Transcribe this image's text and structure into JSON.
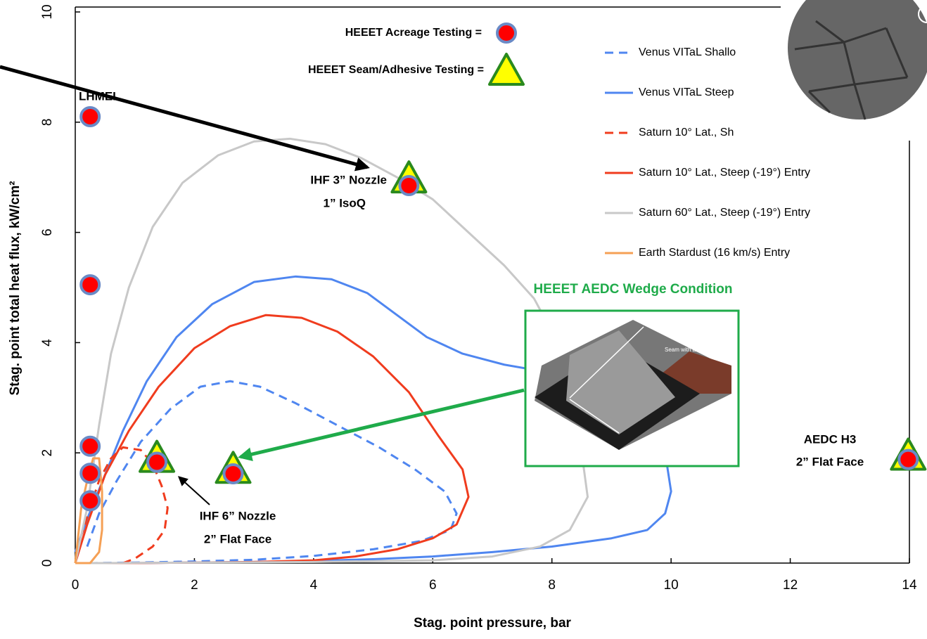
{
  "chart_data": {
    "type": "line",
    "x_label": "Stag. point pressure, bar",
    "y_label": "Stag. point total heat flux, kW/cm²",
    "xlim": [
      0,
      14
    ],
    "xticks": [
      0,
      2,
      4,
      6,
      8,
      10,
      12,
      14
    ],
    "ylim": [
      0,
      10
    ],
    "yticks": [
      0,
      2,
      4,
      6,
      8,
      10
    ],
    "series": [
      {
        "name": "Venus VITaL Shallo",
        "type": "line",
        "dash": true,
        "color": "#4f86f0",
        "x": [
          0.2,
          0.4,
          0.7,
          1.1,
          1.6,
          2.1,
          2.6,
          3.1,
          3.7,
          4.4,
          5.1,
          5.7,
          6.2,
          6.4,
          6.3,
          5.8,
          5,
          4,
          3,
          2,
          1,
          0.3
        ],
        "values": [
          0.3,
          0.9,
          1.5,
          2.2,
          2.8,
          3.2,
          3.3,
          3.2,
          2.9,
          2.5,
          2.1,
          1.7,
          1.3,
          0.9,
          0.6,
          0.4,
          0.25,
          0.13,
          0.06,
          0.03,
          0.01,
          0
        ]
      },
      {
        "name": "Venus VITaL Steep",
        "type": "line",
        "dash": false,
        "color": "#4f86f0",
        "x": [
          0,
          0.2,
          0.5,
          0.8,
          1.2,
          1.7,
          2.3,
          3,
          3.7,
          4.3,
          4.9,
          5.4,
          5.9,
          6.5,
          7.2,
          8,
          9,
          9.6,
          9.9,
          10,
          9.9,
          9.6,
          9,
          8,
          7,
          6,
          5,
          4,
          3,
          2,
          1,
          0
        ],
        "values": [
          0.2,
          0.8,
          1.6,
          2.4,
          3.3,
          4.1,
          4.7,
          5.1,
          5.2,
          5.15,
          4.9,
          4.5,
          4.1,
          3.8,
          3.6,
          3.45,
          3.2,
          2.7,
          2,
          1.3,
          0.9,
          0.6,
          0.45,
          0.3,
          0.2,
          0.12,
          0.07,
          0.04,
          0.02,
          0.01,
          0,
          0
        ]
      },
      {
        "name": "Saturn 10° Lat., Sh",
        "type": "line",
        "dash": true,
        "color": "#f03c1e",
        "x": [
          0.8,
          1,
          1.3,
          1.5,
          1.55,
          1.45,
          1.3,
          1.1,
          0.8,
          0.6,
          0.4,
          0.25,
          0.1
        ],
        "values": [
          0,
          0.08,
          0.3,
          0.6,
          1,
          1.4,
          1.8,
          2.05,
          2.1,
          1.9,
          1.5,
          1,
          0.5
        ]
      },
      {
        "name": "Saturn 10° Lat., Steep (-19°) Entry",
        "type": "line",
        "dash": false,
        "color": "#f03c1e",
        "x": [
          0,
          0.2,
          0.5,
          0.9,
          1.4,
          2,
          2.6,
          3.2,
          3.8,
          4.4,
          5,
          5.6,
          6.1,
          6.5,
          6.6,
          6.4,
          6,
          5.4,
          4.7,
          4,
          3,
          2,
          1,
          0
        ],
        "values": [
          0,
          0.7,
          1.6,
          2.4,
          3.2,
          3.9,
          4.3,
          4.5,
          4.45,
          4.2,
          3.75,
          3.1,
          2.3,
          1.7,
          1.2,
          0.7,
          0.45,
          0.25,
          0.12,
          0.05,
          0.02,
          0.01,
          0,
          0
        ]
      },
      {
        "name": "Saturn 60° Lat., Steep (-19°) Entry",
        "type": "line",
        "dash": false,
        "color": "#c8c8c8",
        "x": [
          0,
          0.2,
          0.4,
          0.6,
          0.9,
          1.3,
          1.8,
          2.4,
          3,
          3.6,
          4.2,
          4.8,
          5.4,
          6,
          6.6,
          7.2,
          7.7,
          8.1,
          8.4,
          8.5,
          8.6,
          8.3,
          7.8,
          7,
          6,
          4,
          2,
          0.5,
          0
        ],
        "values": [
          0,
          1,
          2.5,
          3.8,
          5,
          6.1,
          6.9,
          7.4,
          7.65,
          7.7,
          7.6,
          7.35,
          7,
          6.6,
          6,
          5.4,
          4.8,
          4,
          3,
          2,
          1.2,
          0.6,
          0.3,
          0.12,
          0.05,
          0.02,
          0.01,
          0,
          0
        ]
      },
      {
        "name": "Earth Stardust (16 km/s) Entry",
        "type": "line",
        "dash": false,
        "color": "#f5a055",
        "x": [
          0,
          0.05,
          0.1,
          0.2,
          0.3,
          0.4,
          0.45,
          0.45,
          0.4,
          0.25,
          0
        ],
        "values": [
          0,
          0.5,
          1,
          1.5,
          1.9,
          1.9,
          1.3,
          0.6,
          0.2,
          0,
          0
        ]
      },
      {
        "name": "HEEET Seam/Adhesive Testing =",
        "type": "scatter",
        "marker": "triangle",
        "color": "#ffff00",
        "edge": "#2a8a1e",
        "x": [
          1.37,
          2.65,
          5.6,
          13.98
        ],
        "values": [
          1.88,
          1.68,
          6.95,
          1.92
        ]
      },
      {
        "name": "HEEET Acreage Testing =",
        "type": "scatter",
        "marker": "circle",
        "color": "#ff0000",
        "edge": "#6a8ac6",
        "x": [
          0.25,
          0.25,
          0.25,
          0.25,
          0.25,
          1.37,
          2.65,
          5.6,
          13.98
        ],
        "values": [
          8.1,
          5.05,
          2.12,
          1.63,
          1.13,
          1.83,
          1.62,
          6.85,
          1.88
        ]
      }
    ],
    "annotations": {
      "lhmel": "LHMEL",
      "ihf3_a": "IHF 3” Nozzle",
      "ihf3_b": "1” IsoQ",
      "ihf6_a": "IHF 6” Nozzle",
      "ihf6_b": "2” Flat Face",
      "aedc_a": "AEDC H3",
      "aedc_b": "2” Flat Face",
      "wedge": "HEEET AEDC Wedge Condition",
      "inset": "Seam with ESH"
    }
  }
}
